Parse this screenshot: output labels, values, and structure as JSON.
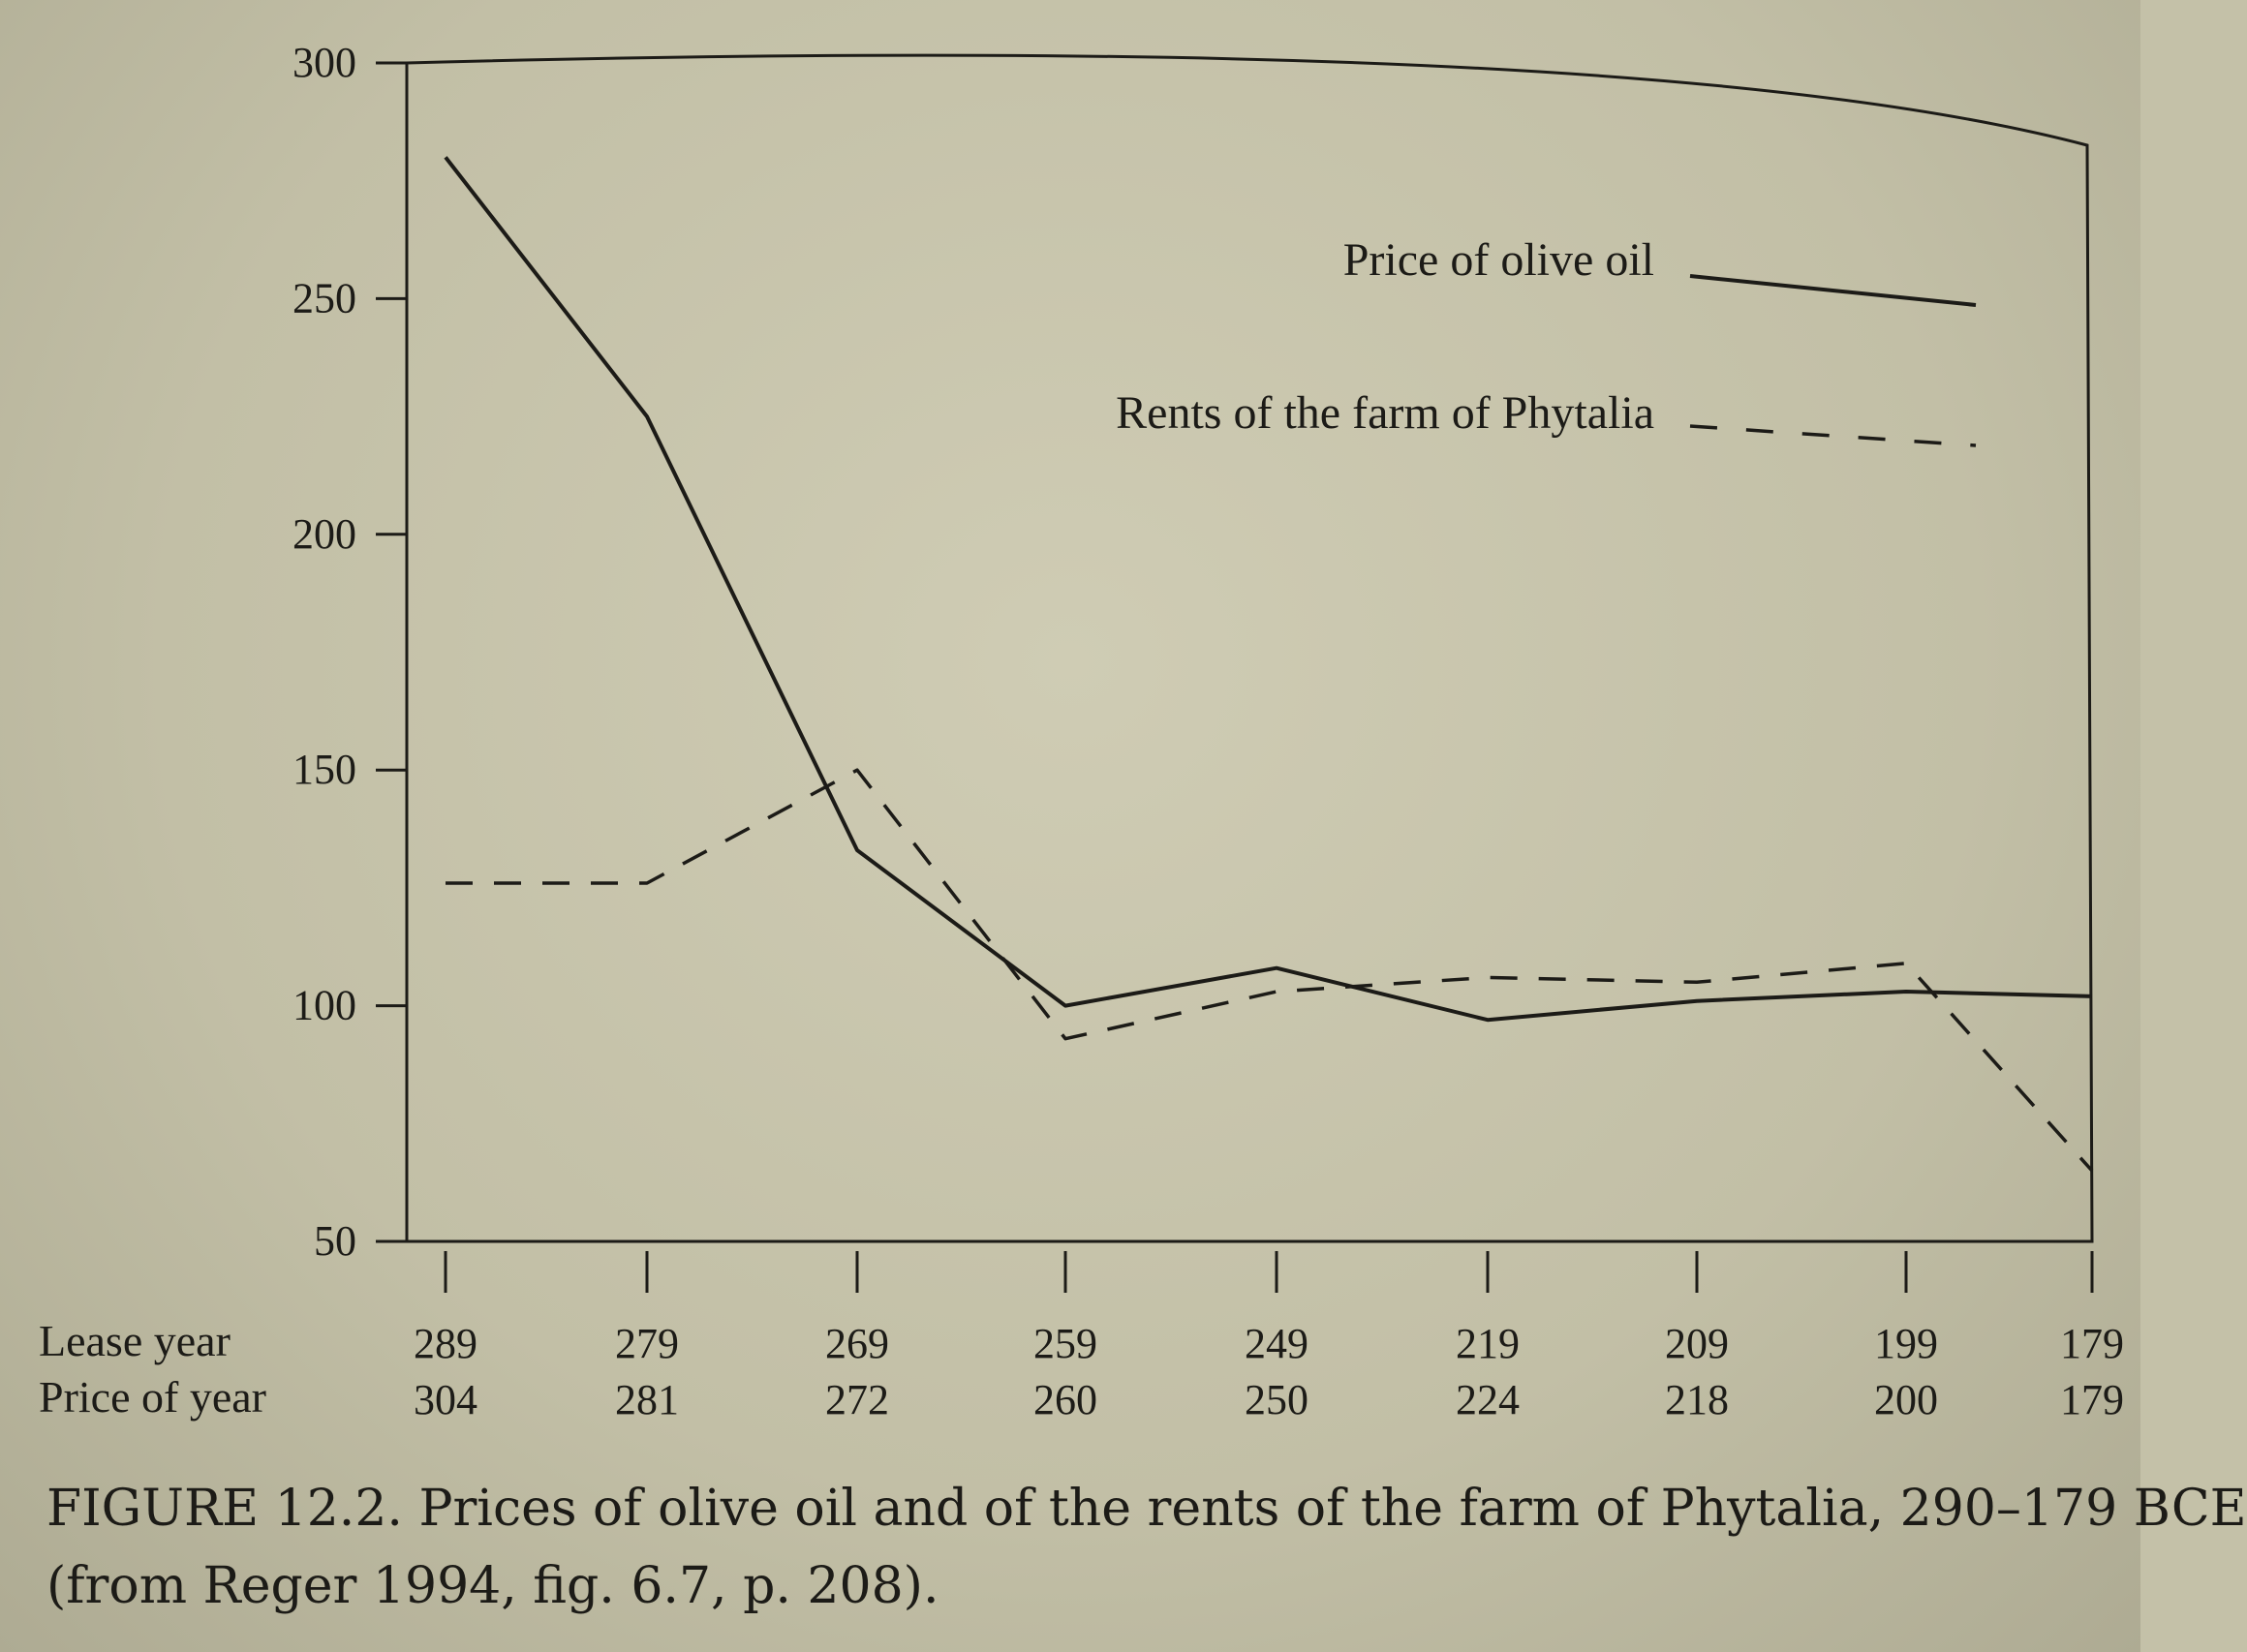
{
  "chart_data": {
    "type": "line",
    "x": [
      "289",
      "279",
      "269",
      "259",
      "249",
      "219",
      "209",
      "199",
      "179"
    ],
    "second_row": [
      "304",
      "281",
      "272",
      "260",
      "250",
      "224",
      "218",
      "200",
      "179"
    ],
    "row_labels": [
      "Lease year",
      "Price of year"
    ],
    "y_ticks": [
      50,
      100,
      150,
      200,
      250,
      300
    ],
    "ylim": [
      50,
      300
    ],
    "series": [
      {
        "name": "Price of olive oil",
        "style": "solid",
        "color": "#1c1b17",
        "values": [
          280,
          225,
          133,
          100,
          108,
          97,
          101,
          103,
          102
        ]
      },
      {
        "name": "Rents of the farm of Phytalia",
        "style": "dashed",
        "color": "#1c1b17",
        "values": [
          126,
          126,
          150,
          93,
          103,
          106,
          105,
          109,
          65
        ]
      }
    ],
    "legend_position": "top-right",
    "grid": false
  },
  "caption": {
    "line1": "FIGURE 12.2. Prices of olive oil and of the rents of the farm of Phytalia, 290–179 BCE",
    "line2": "(from Reger 1994, fig. 6.7, p. 208)."
  }
}
